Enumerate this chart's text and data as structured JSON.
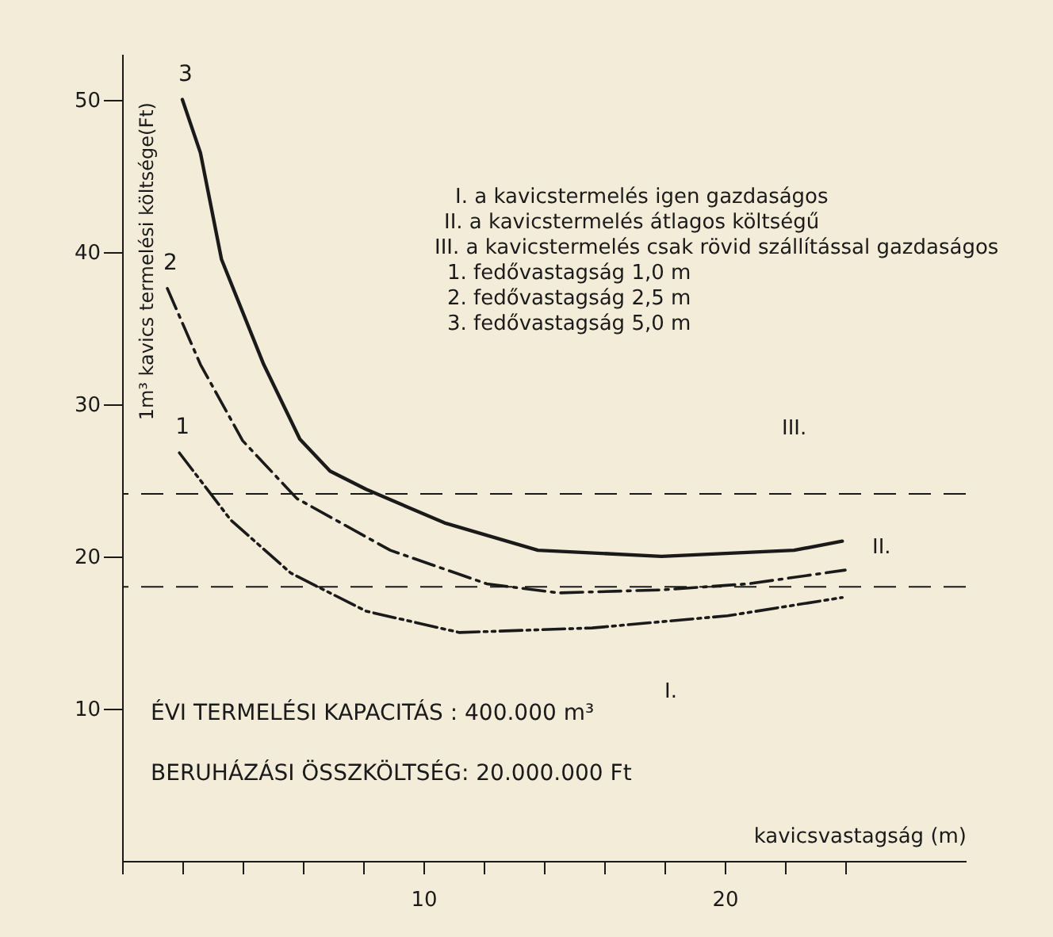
{
  "chart_data": {
    "type": "line",
    "xlabel": "kavicsvastagság (m)",
    "ylabel": "1m³ kavics termelési költsége(Ft)",
    "xlim": [
      0,
      28
    ],
    "ylim": [
      0,
      53
    ],
    "xticks": [
      {
        "value": 0,
        "label": null
      },
      {
        "value": 2,
        "label": null
      },
      {
        "value": 4,
        "label": null
      },
      {
        "value": 6,
        "label": null
      },
      {
        "value": 8,
        "label": null
      },
      10,
      {
        "value": 12,
        "label": null
      },
      {
        "value": 14,
        "label": null
      },
      {
        "value": 16,
        "label": null
      },
      {
        "value": 18,
        "label": null
      },
      20,
      {
        "value": 22,
        "label": null
      },
      {
        "value": 24,
        "label": null
      }
    ],
    "yticks": [
      10,
      20,
      30,
      40,
      50
    ],
    "series": [
      {
        "name": "3",
        "color": "#1a1a1a",
        "line_style": "solid",
        "x": [
          2.0,
          2.6,
          3.3,
          4.7,
          5.9,
          6.9,
          8.1,
          10.7,
          13.8,
          17.9,
          22.3,
          23.9
        ],
        "values": [
          50,
          46.5,
          39.5,
          32.6,
          27.7,
          25.6,
          24.4,
          22.2,
          20.4,
          20.0,
          20.4,
          21.0
        ]
      },
      {
        "name": "2",
        "color": "#1a1a1a",
        "line_style": "dashed",
        "x": [
          1.5,
          2.6,
          4.0,
          5.8,
          8.9,
          12.1,
          14.5,
          17.9,
          20.8,
          24.0
        ],
        "values": [
          37.6,
          32.6,
          27.6,
          23.8,
          20.4,
          18.2,
          17.6,
          17.8,
          18.2,
          19.1
        ]
      },
      {
        "name": "1",
        "color": "#1a1a1a",
        "line_style": "dotted",
        "x": [
          1.9,
          3.6,
          5.6,
          8.1,
          11.2,
          15.6,
          20.1,
          23.9
        ],
        "values": [
          26.8,
          22.4,
          18.9,
          16.4,
          15.0,
          15.3,
          16.1,
          17.3
        ]
      }
    ],
    "ref_lines": [
      {
        "axis": "y",
        "value": 24.1,
        "color": "#1a1a1a",
        "line_style": "dashed"
      },
      {
        "axis": "y",
        "value": 18.0,
        "color": "#1a1a1a",
        "line_style": "dashed"
      }
    ],
    "annotations": [
      "I. a kavicstermelés igen gazdaságos",
      "II. a kavicstermelés átlagos költségű",
      "III. a kavicstermelés csak rövid szállítással gazdaságos",
      "1. fedővastagság 1,0 m",
      "2. fedővastagság 2,5 m",
      "3. fedővastagság 5,0 m",
      "ÉVI TERMELÉSI KAPACITÁS : 400.000 m³",
      "BERUHÁZÁSI ÖSSZKÖLTSÉG: 20.000.000 Ft",
      "III.",
      "II.",
      "I."
    ]
  }
}
